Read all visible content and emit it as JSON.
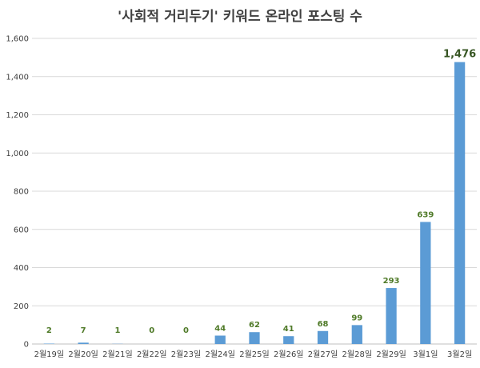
{
  "chart_data": {
    "type": "bar",
    "title": "'사회적 거리두기' 키워드 온라인 포스팅 수",
    "categories": [
      "2월19일",
      "2월20일",
      "2월21일",
      "2월22일",
      "2월23일",
      "2월24일",
      "2월25일",
      "2월26일",
      "2월27일",
      "2월28일",
      "2월29일",
      "3월1일",
      "3월2일"
    ],
    "values": [
      2,
      7,
      1,
      0,
      0,
      44,
      62,
      41,
      68,
      99,
      293,
      639,
      1476
    ],
    "data_labels": [
      "2",
      "7",
      "1",
      "0",
      "0",
      "44",
      "62",
      "41",
      "68",
      "99",
      "293",
      "639",
      "1,476"
    ],
    "ylim": [
      0,
      1600
    ],
    "yticks": [
      0,
      200,
      400,
      600,
      800,
      1000,
      1200,
      1400,
      1600
    ],
    "ytick_labels": [
      "0",
      "200",
      "400",
      "600",
      "800",
      "1,000",
      "1,200",
      "1,400",
      "1,600"
    ],
    "xlabel": "",
    "ylabel": "",
    "grid": true,
    "bar_color": "#5b9bd5",
    "label_color": "#4f7a28",
    "max_label_color": "#375623",
    "grid_color": "#d9d9d9"
  }
}
